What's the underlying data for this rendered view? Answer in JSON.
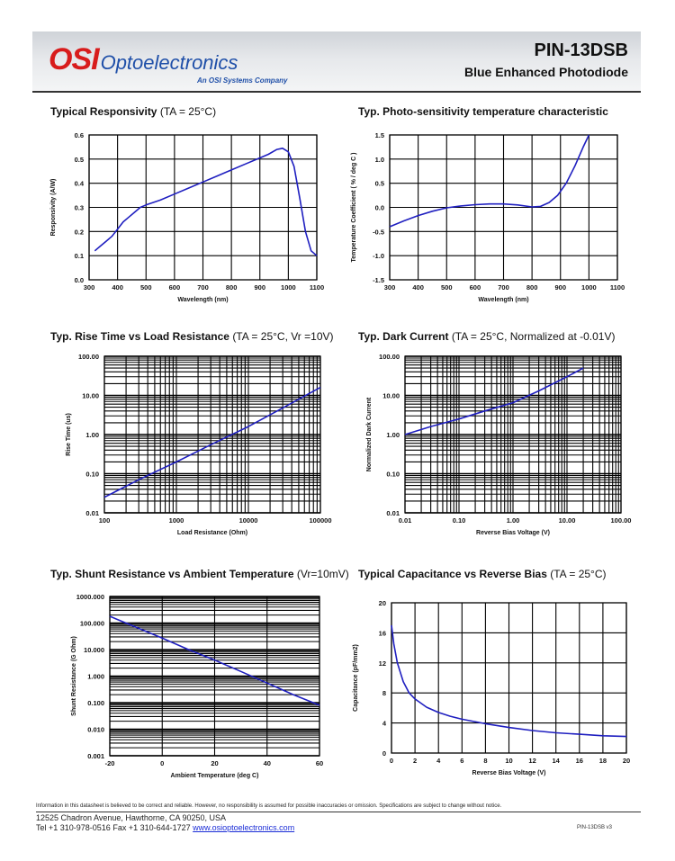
{
  "header": {
    "logo_osi": "OSI",
    "logo_opto": "Optoelectronics",
    "logo_sub": "An OSI Systems Company",
    "part_number": "PIN-13DSB",
    "description": "Blue Enhanced Photodiode"
  },
  "footer": {
    "disclaimer": "Information in this datasheet is believed to be correct and reliable. However, no responsibility is assumed for possible inaccuracies or omission. Specifications are subject to change without notice.",
    "address": "12525 Chadron Avenue, Hawthorne, CA 90250, USA",
    "contact": "Tel +1 310-978-0516 Fax +1 310-644-1727 ",
    "website": "www.osioptoelectronics.com",
    "revision": "PIN-13DSB v3"
  },
  "chart_data": [
    {
      "id": "responsivity",
      "type": "line",
      "title": "Typical Responsivity",
      "condition": "(TA = 25°C)",
      "xlabel": "Wavelength (nm)",
      "ylabel": "Responsivity (A/W)",
      "xscale": "linear",
      "yscale": "linear",
      "xlim": [
        300,
        1100
      ],
      "ylim": [
        0,
        0.6
      ],
      "xticks": [
        300,
        400,
        500,
        600,
        700,
        800,
        900,
        1000,
        1100
      ],
      "xtick_labels": [
        "300",
        "400",
        "500",
        "600",
        "700",
        "800",
        "900",
        "1000",
        "1100"
      ],
      "yticks": [
        0,
        0.1,
        0.2,
        0.3,
        0.4,
        0.5,
        0.6
      ],
      "ytick_labels": [
        "0.0",
        "0.1",
        "0.2",
        "0.3",
        "0.4",
        "0.5",
        "0.6"
      ],
      "grid": true,
      "minor_grid": false,
      "series": [
        {
          "name": "Responsivity",
          "x": [
            320,
            340,
            360,
            380,
            400,
            420,
            440,
            460,
            480,
            500,
            550,
            600,
            650,
            700,
            750,
            800,
            850,
            900,
            930,
            960,
            980,
            1000,
            1020,
            1040,
            1060,
            1080,
            1100
          ],
          "y": [
            0.12,
            0.14,
            0.16,
            0.18,
            0.21,
            0.24,
            0.26,
            0.28,
            0.3,
            0.31,
            0.33,
            0.355,
            0.38,
            0.405,
            0.43,
            0.455,
            0.48,
            0.505,
            0.52,
            0.54,
            0.545,
            0.53,
            0.47,
            0.34,
            0.2,
            0.12,
            0.1
          ]
        }
      ]
    },
    {
      "id": "tempcoef",
      "type": "line",
      "title": "Typ. Photo-sensitivity temperature characteristic",
      "condition": "",
      "xlabel": "Wavelength (nm)",
      "ylabel": "Temperature Coefficient ( % / deg C )",
      "xscale": "linear",
      "yscale": "linear",
      "xlim": [
        300,
        1100
      ],
      "ylim": [
        -1.5,
        1.5
      ],
      "xticks": [
        300,
        400,
        500,
        600,
        700,
        800,
        900,
        1000,
        1100
      ],
      "xtick_labels": [
        "300",
        "400",
        "500",
        "600",
        "700",
        "800",
        "900",
        "1000",
        "1100"
      ],
      "yticks": [
        -1.5,
        -1.0,
        -0.5,
        0.0,
        0.5,
        1.0,
        1.5
      ],
      "ytick_labels": [
        "-1.5",
        "-1.0",
        "-0.5",
        "0.0",
        "0.5",
        "1.0",
        "1.5"
      ],
      "grid": true,
      "minor_grid": false,
      "series": [
        {
          "name": "Temp coefficient",
          "x": [
            300,
            350,
            400,
            450,
            500,
            550,
            600,
            650,
            700,
            750,
            800,
            830,
            860,
            890,
            920,
            950,
            980,
            1000
          ],
          "y": [
            -0.4,
            -0.28,
            -0.17,
            -0.08,
            -0.01,
            0.03,
            0.055,
            0.07,
            0.07,
            0.05,
            0.01,
            0.02,
            0.1,
            0.25,
            0.5,
            0.85,
            1.25,
            1.5
          ]
        }
      ]
    },
    {
      "id": "risetime",
      "type": "line",
      "title": "Typ. Rise Time vs Load Resistance",
      "condition": "(TA = 25°C, Vr =10V)",
      "xlabel": "Load Resistance (Ohm)",
      "ylabel": "Rise Time (us)",
      "xscale": "log",
      "yscale": "log",
      "xlim": [
        100,
        100000
      ],
      "ylim": [
        0.01,
        100
      ],
      "xticks": [
        100,
        1000,
        10000,
        100000
      ],
      "xtick_labels": [
        "100",
        "1000",
        "10000",
        "100000"
      ],
      "yticks": [
        0.01,
        0.1,
        1,
        10,
        100
      ],
      "ytick_labels": [
        "0.01",
        "0.10",
        "1.00",
        "10.00",
        "100.00"
      ],
      "grid": true,
      "minor_grid": true,
      "series": [
        {
          "name": "Rise time",
          "x": [
            100,
            300,
            1000,
            3000,
            10000,
            30000,
            100000
          ],
          "y": [
            0.025,
            0.07,
            0.2,
            0.55,
            1.6,
            4.8,
            16
          ]
        }
      ]
    },
    {
      "id": "darkcurrent",
      "type": "line",
      "title": "Typ. Dark Current",
      "condition": "(TA = 25°C, Normalized at -0.01V)",
      "xlabel": "Reverse Bias Voltage (V)",
      "ylabel": "Normalized Dark Current",
      "xscale": "log",
      "yscale": "log",
      "xlim": [
        0.01,
        100
      ],
      "ylim": [
        0.01,
        100
      ],
      "xticks": [
        0.01,
        0.1,
        1,
        10,
        100
      ],
      "xtick_labels": [
        "0.01",
        "0.10",
        "1.00",
        "10.00",
        "100.00"
      ],
      "yticks": [
        0.01,
        0.1,
        1,
        10,
        100
      ],
      "ytick_labels": [
        "0.01",
        "0.10",
        "1.00",
        "10.00",
        "100.00"
      ],
      "grid": true,
      "minor_grid": true,
      "series": [
        {
          "name": "Dark current",
          "x": [
            0.01,
            0.03,
            0.1,
            0.3,
            1,
            3,
            10,
            20
          ],
          "y": [
            1,
            1.6,
            2.5,
            4,
            6.5,
            13,
            30,
            50
          ]
        }
      ]
    },
    {
      "id": "shunt",
      "type": "line",
      "title": "Typ. Shunt Resistance vs Ambient Temperature",
      "condition": "(Vr=10mV)",
      "xlabel": "Ambient Temperature (deg C)",
      "ylabel": "Shunt Resistance (G Ohm)",
      "xscale": "linear",
      "yscale": "log",
      "xlim": [
        -20,
        60
      ],
      "ylim": [
        0.001,
        1000
      ],
      "xticks": [
        -20,
        0,
        20,
        40,
        60
      ],
      "xtick_labels": [
        "-20",
        "0",
        "20",
        "40",
        "60"
      ],
      "yticks": [
        0.001,
        0.01,
        0.1,
        1,
        10,
        100,
        1000
      ],
      "ytick_labels": [
        "0.001",
        "0.010",
        "0.100",
        "1.000",
        "10.000",
        "100.000",
        "1000.000"
      ],
      "grid": true,
      "minor_grid": true,
      "series": [
        {
          "name": "Shunt resistance",
          "x": [
            -20,
            -10,
            0,
            10,
            20,
            30,
            40,
            50,
            60
          ],
          "y": [
            180,
            70,
            27,
            10,
            4,
            1.5,
            0.55,
            0.2,
            0.08
          ]
        }
      ]
    },
    {
      "id": "capacitance",
      "type": "line",
      "title": "Typical Capacitance vs Reverse Bias",
      "condition": "(TA = 25°C)",
      "xlabel": "Reverse Bias Voltage (V)",
      "ylabel": "Capacitance (pF/mm2)",
      "xscale": "linear",
      "yscale": "linear",
      "xlim": [
        0,
        20
      ],
      "ylim": [
        0,
        20
      ],
      "xticks": [
        0,
        2,
        4,
        6,
        8,
        10,
        12,
        14,
        16,
        18,
        20
      ],
      "xtick_labels": [
        "0",
        "2",
        "4",
        "6",
        "8",
        "10",
        "12",
        "14",
        "16",
        "18",
        "20"
      ],
      "yticks": [
        0,
        4,
        8,
        12,
        16,
        20
      ],
      "ytick_labels": [
        "0",
        "4",
        "8",
        "12",
        "16",
        "20"
      ],
      "grid": true,
      "minor_grid": false,
      "series": [
        {
          "name": "Capacitance",
          "x": [
            0,
            0.2,
            0.5,
            1,
            1.5,
            2,
            3,
            4,
            5,
            6,
            8,
            10,
            12,
            14,
            16,
            18,
            20
          ],
          "y": [
            17,
            14.5,
            12,
            9.5,
            8,
            7.2,
            6.1,
            5.4,
            4.9,
            4.5,
            3.9,
            3.4,
            3.0,
            2.7,
            2.5,
            2.3,
            2.2
          ]
        }
      ]
    }
  ]
}
